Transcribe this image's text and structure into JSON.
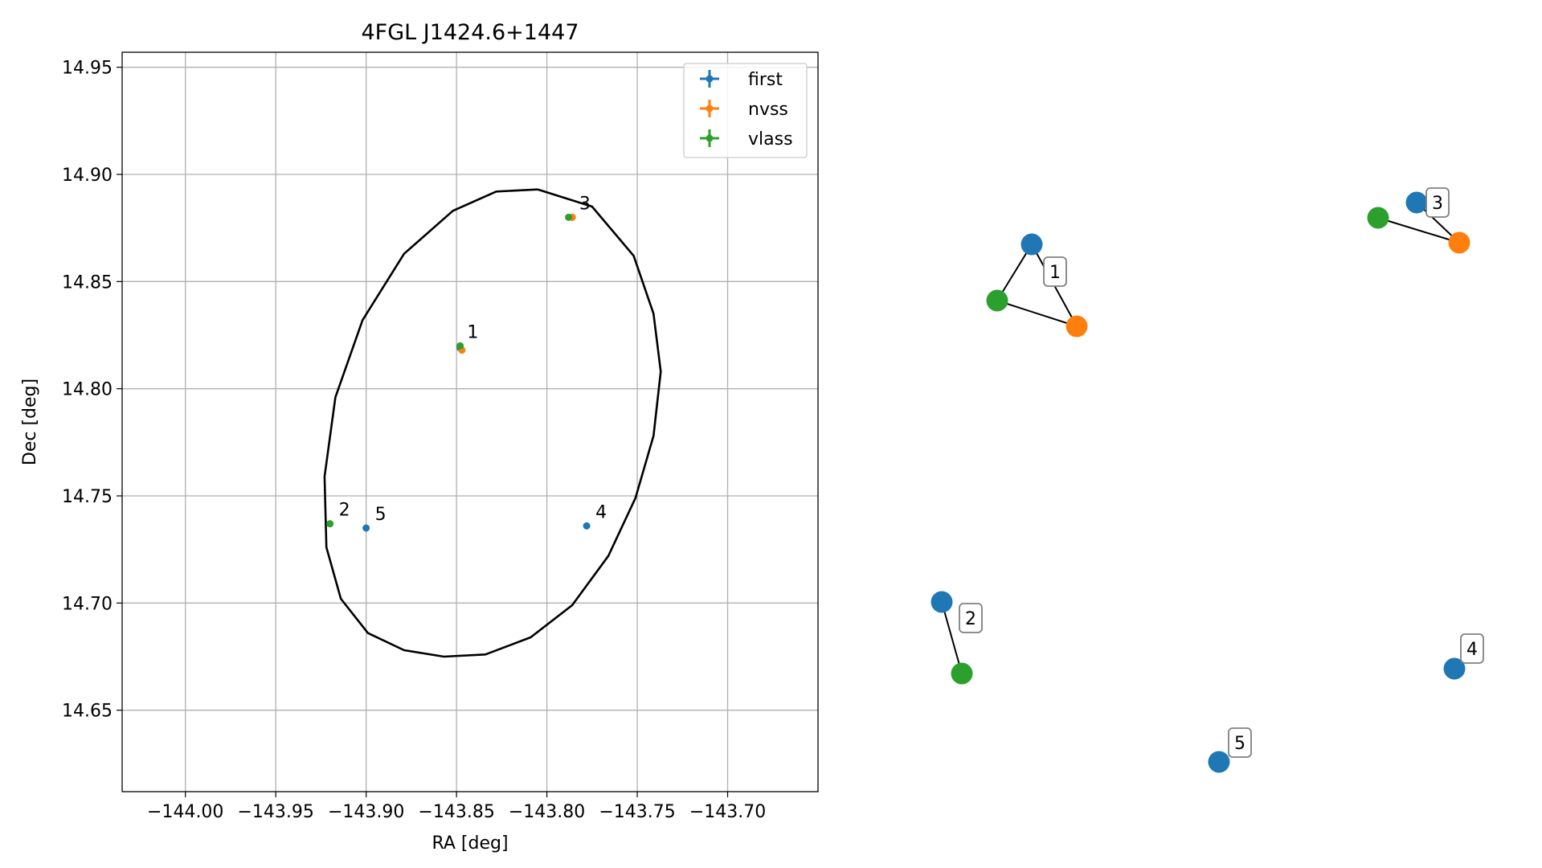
{
  "chart_data": [
    {
      "type": "scatter",
      "title": "4FGL J1424.6+1447",
      "xlabel": "RA [deg]",
      "ylabel": "Dec [deg]",
      "xlim": [
        -144.035,
        -143.65
      ],
      "ylim": [
        14.612,
        14.957
      ],
      "xticks": [
        -144.0,
        -143.95,
        -143.9,
        -143.85,
        -143.8,
        -143.75,
        -143.7
      ],
      "xtick_labels": [
        "−144.00",
        "−143.95",
        "−143.90",
        "−143.85",
        "−143.80",
        "−143.75",
        "−143.70"
      ],
      "yticks": [
        14.65,
        14.7,
        14.75,
        14.8,
        14.85,
        14.9,
        14.95
      ],
      "ytick_labels": [
        "14.65",
        "14.70",
        "14.75",
        "14.80",
        "14.85",
        "14.90",
        "14.95"
      ],
      "grid": true,
      "legend_position": "top-right",
      "series": [
        {
          "name": "first",
          "color": "#1f77b4",
          "points": [
            {
              "x": -143.848,
              "y": 14.819
            },
            {
              "x": -143.786,
              "y": 14.88
            },
            {
              "x": -143.778,
              "y": 14.736
            },
            {
              "x": -143.9,
              "y": 14.735
            }
          ]
        },
        {
          "name": "nvss",
          "color": "#ff7f0e",
          "points": [
            {
              "x": -143.847,
              "y": 14.818
            },
            {
              "x": -143.786,
              "y": 14.88
            }
          ]
        },
        {
          "name": "vlass",
          "color": "#2ca02c",
          "points": [
            {
              "x": -143.848,
              "y": 14.82
            },
            {
              "x": -143.788,
              "y": 14.88
            },
            {
              "x": -143.92,
              "y": 14.737
            }
          ]
        }
      ],
      "ellipse": {
        "color": "#000000",
        "points": [
          [
            -143.805,
            14.893
          ],
          [
            -143.775,
            14.885
          ],
          [
            -143.752,
            14.862
          ],
          [
            -143.741,
            14.835
          ],
          [
            -143.737,
            14.808
          ],
          [
            -143.741,
            14.778
          ],
          [
            -143.751,
            14.749
          ],
          [
            -143.766,
            14.722
          ],
          [
            -143.786,
            14.699
          ],
          [
            -143.809,
            14.684
          ],
          [
            -143.834,
            14.676
          ],
          [
            -143.857,
            14.675
          ],
          [
            -143.879,
            14.678
          ],
          [
            -143.899,
            14.686
          ],
          [
            -143.914,
            14.702
          ],
          [
            -143.922,
            14.726
          ],
          [
            -143.923,
            14.759
          ],
          [
            -143.917,
            14.796
          ],
          [
            -143.902,
            14.832
          ],
          [
            -143.879,
            14.863
          ],
          [
            -143.852,
            14.883
          ],
          [
            -143.828,
            14.892
          ],
          [
            -143.805,
            14.893
          ]
        ]
      },
      "annotations": [
        {
          "text": "1",
          "x": -143.849,
          "y": 14.82
        },
        {
          "text": "2",
          "x": -143.92,
          "y": 14.737
        },
        {
          "text": "3",
          "x": -143.787,
          "y": 14.88
        },
        {
          "text": "4",
          "x": -143.778,
          "y": 14.736
        },
        {
          "text": "5",
          "x": -143.9,
          "y": 14.735
        }
      ]
    },
    {
      "type": "network",
      "nodes": [
        {
          "id": "1-first",
          "color": "#1f77b4"
        },
        {
          "id": "1-vlass",
          "color": "#2ca02c"
        },
        {
          "id": "1-nvss",
          "color": "#ff7f0e"
        },
        {
          "id": "3-first",
          "color": "#1f77b4"
        },
        {
          "id": "3-vlass",
          "color": "#2ca02c"
        },
        {
          "id": "3-nvss",
          "color": "#ff7f0e"
        },
        {
          "id": "2-first",
          "color": "#1f77b4"
        },
        {
          "id": "2-vlass",
          "color": "#2ca02c"
        },
        {
          "id": "4-first",
          "color": "#1f77b4"
        },
        {
          "id": "5-first",
          "color": "#1f77b4"
        }
      ],
      "edges": [
        [
          "1-first",
          "1-vlass"
        ],
        [
          "1-first",
          "1-nvss"
        ],
        [
          "1-vlass",
          "1-nvss"
        ],
        [
          "3-first",
          "3-nvss"
        ],
        [
          "3-vlass",
          "3-nvss"
        ],
        [
          "2-first",
          "2-vlass"
        ]
      ],
      "labels": [
        "1",
        "3",
        "2",
        "4",
        "5"
      ]
    }
  ]
}
